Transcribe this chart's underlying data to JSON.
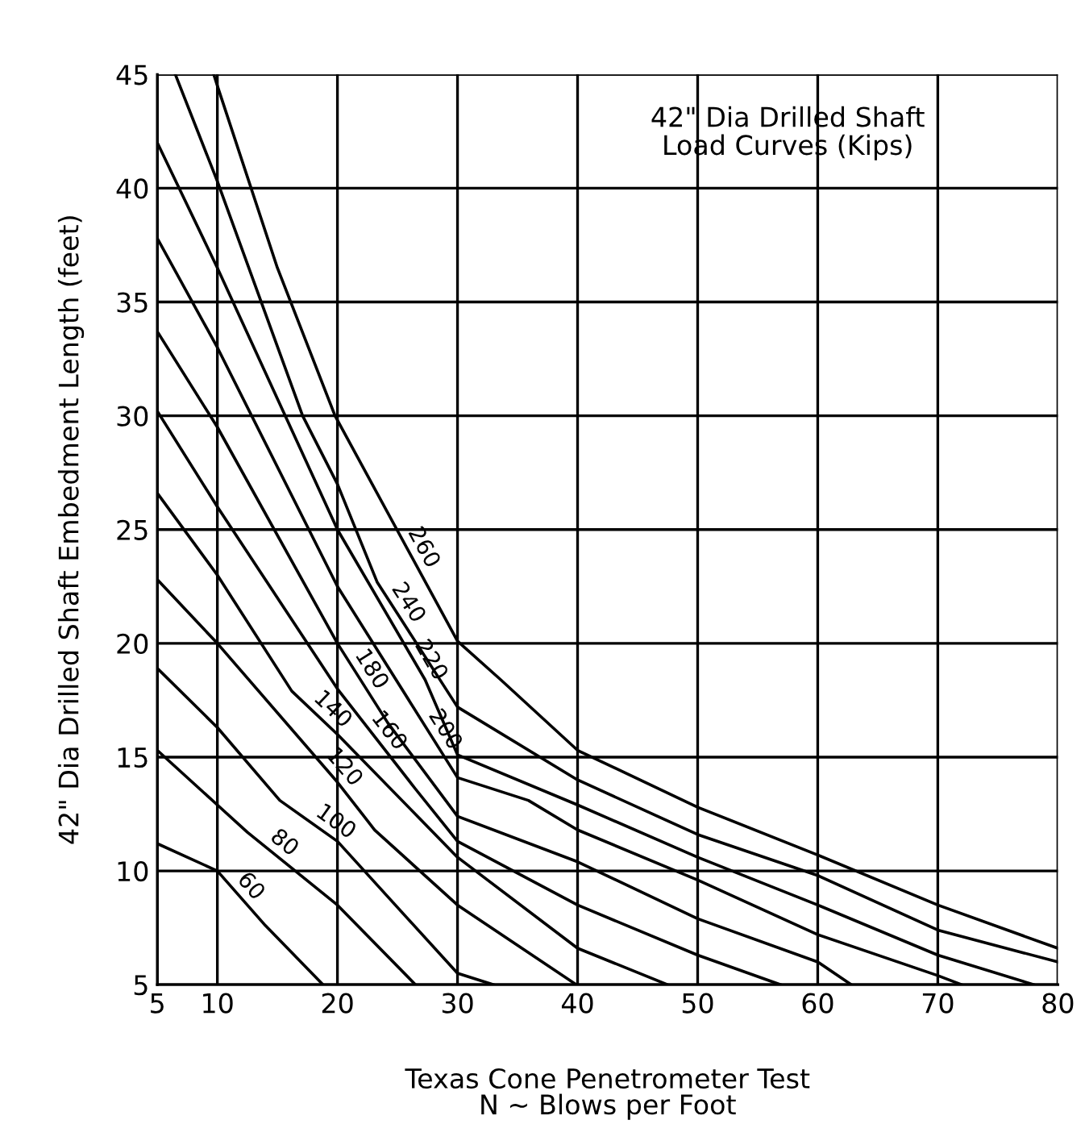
{
  "chart_data": {
    "type": "line",
    "title": "42\" Dia Drilled Shaft\nLoad Curves (Kips)",
    "xlabel": "Texas Cone Penetrometer Test\nN ~ Blows per Foot",
    "ylabel": "42\" Dia Drilled Shaft Embedment Length (feet)",
    "xlim": [
      5,
      80
    ],
    "xticks": [
      5,
      10,
      20,
      30,
      40,
      50,
      60,
      70,
      80
    ],
    "ylim": [
      5,
      45
    ],
    "yticks": [
      5,
      10,
      15,
      20,
      25,
      30,
      35,
      40,
      45
    ],
    "grid": true,
    "marker": "none",
    "line_style": "solid",
    "series": [
      {
        "name": "60",
        "color": "#000000",
        "x": [
          5,
          10,
          14,
          18.8
        ],
        "values": [
          11.2,
          10.0,
          7.6,
          5
        ]
      },
      {
        "name": "80",
        "color": "#000000",
        "x": [
          5,
          10,
          12.5,
          20,
          26.5
        ],
        "values": [
          15.3,
          12.9,
          11.7,
          8.5,
          5
        ]
      },
      {
        "name": "100",
        "color": "#000000",
        "x": [
          5,
          10,
          15.2,
          20,
          30,
          33
        ],
        "values": [
          18.9,
          16.3,
          13.1,
          11.3,
          5.5,
          5
        ]
      },
      {
        "name": "120",
        "color": "#000000",
        "x": [
          5,
          10,
          20,
          23.1,
          30,
          39.9
        ],
        "values": [
          22.8,
          20.0,
          13.9,
          11.8,
          8.5,
          5
        ]
      },
      {
        "name": "140",
        "color": "#000000",
        "x": [
          5,
          10,
          16.2,
          20,
          30,
          40,
          47.5
        ],
        "values": [
          26.6,
          23.0,
          17.9,
          16.0,
          10.6,
          6.6,
          5
        ]
      },
      {
        "name": "160",
        "color": "#000000",
        "x": [
          5,
          10,
          20,
          26.5,
          30,
          40,
          50,
          56.9
        ],
        "values": [
          30.2,
          26.0,
          18.0,
          13.6,
          11.3,
          8.5,
          6.3,
          5
        ]
      },
      {
        "name": "180",
        "color": "#000000",
        "x": [
          5,
          10,
          20,
          24.2,
          30,
          40,
          50,
          60,
          62.8
        ],
        "values": [
          33.7,
          29.5,
          20.0,
          16.5,
          12.4,
          10.4,
          7.9,
          6.0,
          5
        ]
      },
      {
        "name": "200",
        "color": "#000000",
        "x": [
          5,
          10,
          20,
          30,
          35.9,
          40,
          50,
          60,
          70,
          72
        ],
        "values": [
          37.8,
          33.0,
          22.5,
          14.1,
          13.1,
          11.8,
          9.6,
          7.2,
          5.4,
          5
        ]
      },
      {
        "name": "220",
        "color": "#000000",
        "x": [
          5,
          10,
          20,
          27.3,
          30,
          40,
          50,
          60,
          70,
          78
        ],
        "values": [
          42.0,
          36.5,
          25.0,
          18.4,
          15.1,
          12.9,
          10.6,
          8.5,
          6.3,
          5
        ]
      },
      {
        "name": "240",
        "color": "#000000",
        "x": [
          6.5,
          10,
          17.1,
          20,
          23.3,
          30,
          40,
          50,
          60,
          70,
          80
        ],
        "values": [
          45,
          40.3,
          30,
          27,
          22.7,
          17.2,
          14.0,
          11.6,
          9.8,
          7.4,
          6.0
        ]
      },
      {
        "name": "260",
        "color": "#000000",
        "x": [
          9.7,
          10,
          15,
          19.8,
          30,
          33.6,
          40,
          50,
          60,
          70,
          80
        ],
        "values": [
          45,
          44.5,
          36.5,
          30,
          20.1,
          18.4,
          15.3,
          12.8,
          10.7,
          8.5,
          6.6
        ]
      }
    ]
  }
}
